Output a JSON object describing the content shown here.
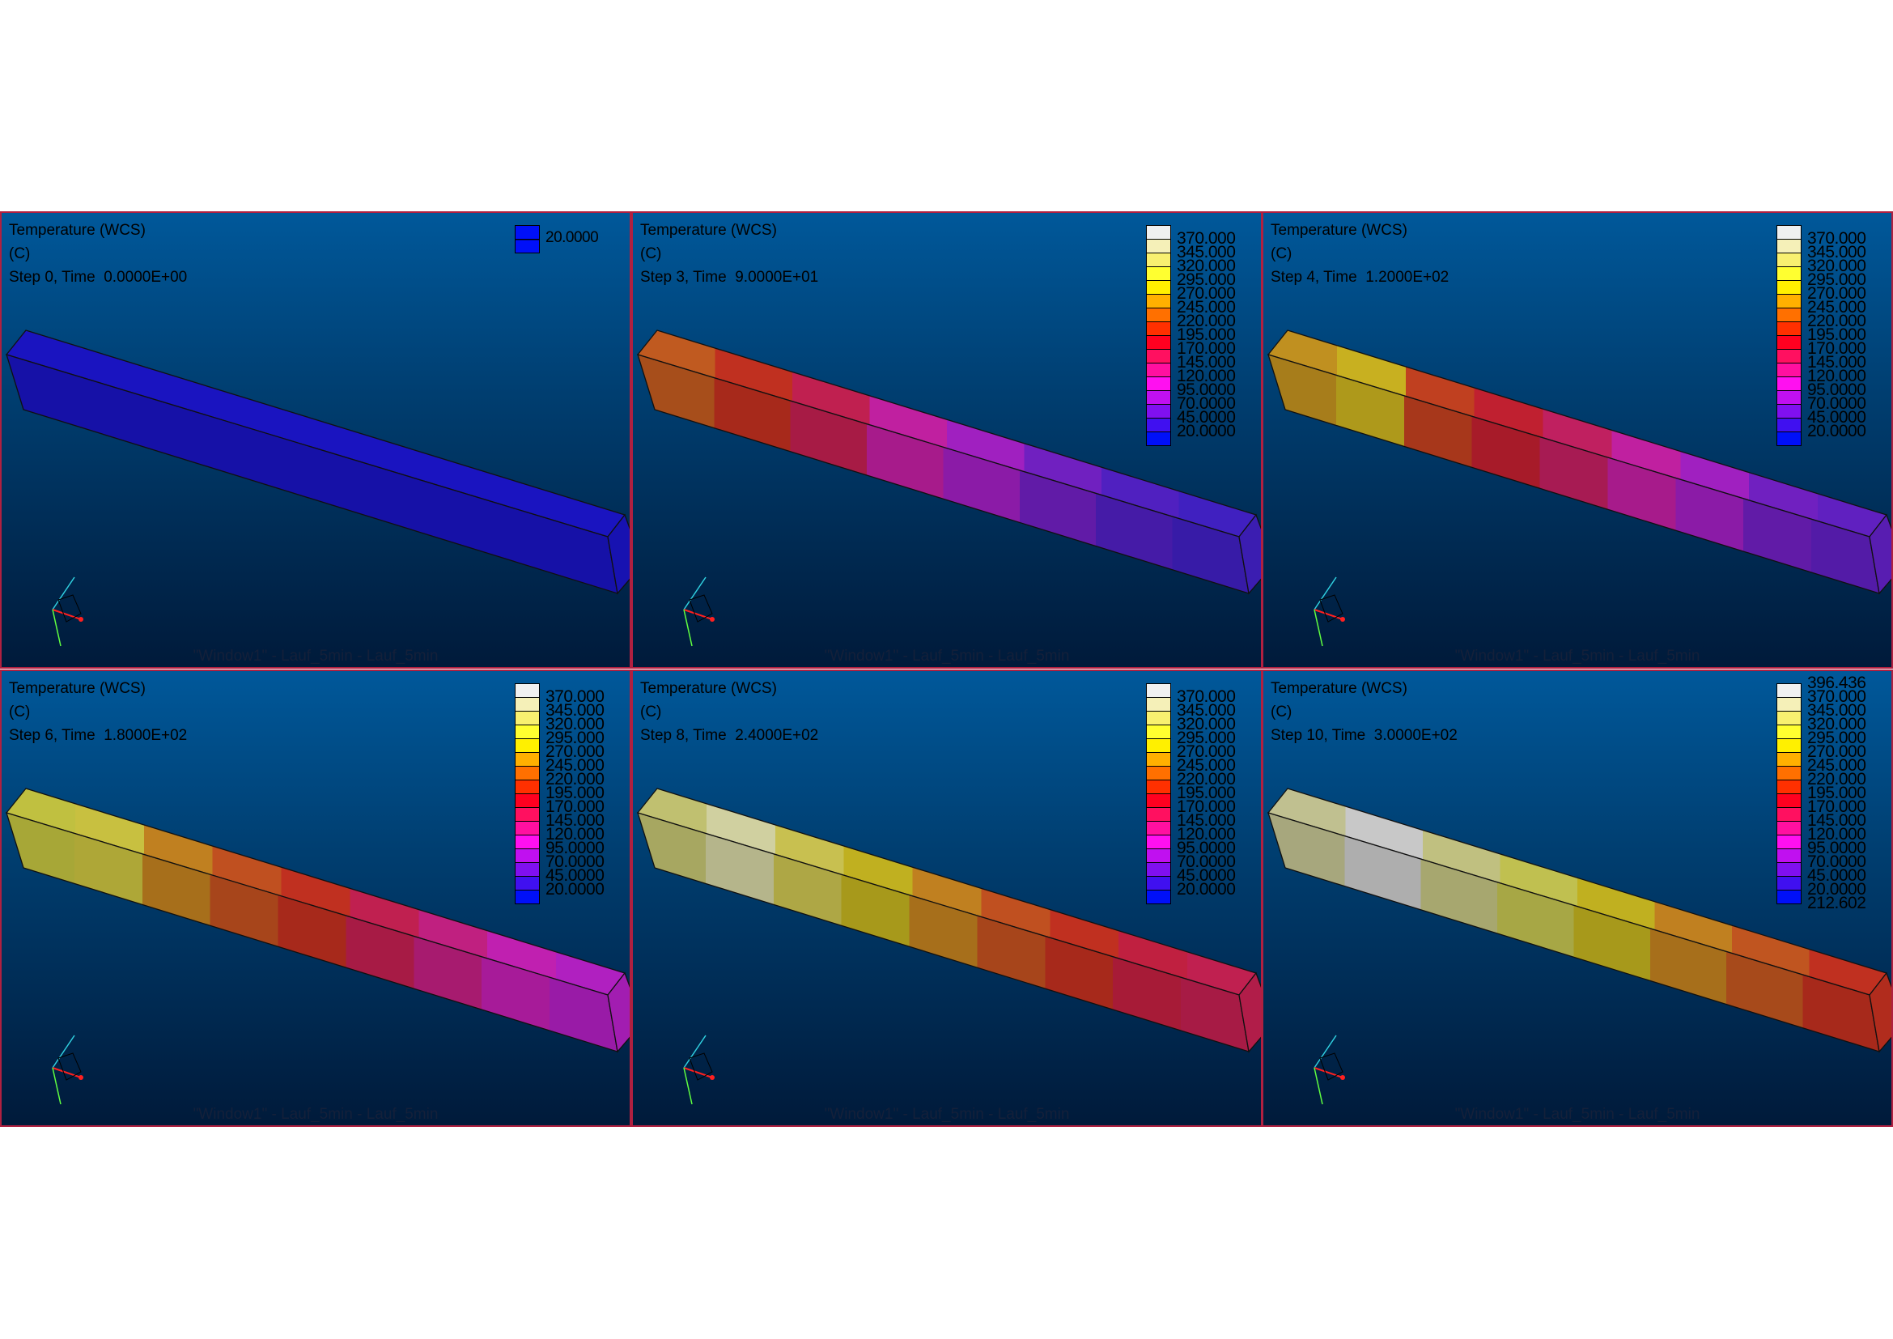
{
  "footer": "\"Window1\" - Lauf_5min - Lauf_5min",
  "legend_colors": [
    "#f0f0f0",
    "#f5f0b8",
    "#f8f070",
    "#ffff30",
    "#fff000",
    "#ffb000",
    "#ff7000",
    "#ff3000",
    "#ff0020",
    "#ff1060",
    "#ff10a0",
    "#ff10f0",
    "#c010f0",
    "#8010f0",
    "#4010f0",
    "#0010f8"
  ],
  "panels": [
    {
      "title": "Temperature (WCS)",
      "unit": "(C)",
      "step": "Step 0, Time  0.0000E+00",
      "legend_single": true,
      "legend_single_color": "#0010f8",
      "legend": [
        "20.0000"
      ],
      "bands": [
        "#1a14c0"
      ]
    },
    {
      "title": "Temperature (WCS)",
      "unit": "(C)",
      "step": "Step 3, Time  9.0000E+01",
      "legend": [
        "370.000",
        "345.000",
        "320.000",
        "295.000",
        "270.000",
        "245.000",
        "220.000",
        "195.000",
        "170.000",
        "145.000",
        "120.000",
        "95.0000",
        "70.0000",
        "45.0000",
        "20.0000"
      ],
      "bands": [
        "#c05a20",
        "#c03020",
        "#c02050",
        "#c020a0",
        "#a020c0",
        "#7020c0",
        "#5020c0",
        "#4020c0"
      ]
    },
    {
      "title": "Temperature (WCS)",
      "unit": "(C)",
      "step": "Step 4, Time  1.2000E+02",
      "legend": [
        "370.000",
        "345.000",
        "320.000",
        "295.000",
        "270.000",
        "245.000",
        "220.000",
        "195.000",
        "170.000",
        "145.000",
        "120.000",
        "95.0000",
        "70.0000",
        "45.0000",
        "20.0000"
      ],
      "bands": [
        "#c09020",
        "#c8b020",
        "#c04020",
        "#c02030",
        "#c02060",
        "#c020a0",
        "#a020c0",
        "#7020c0",
        "#6020c0"
      ]
    },
    {
      "title": "Temperature (WCS)",
      "unit": "(C)",
      "step": "Step 6, Time  1.8000E+02",
      "legend": [
        "370.000",
        "345.000",
        "320.000",
        "295.000",
        "270.000",
        "245.000",
        "220.000",
        "195.000",
        "170.000",
        "145.000",
        "120.000",
        "95.0000",
        "70.0000",
        "45.0000",
        "20.0000"
      ],
      "bands": [
        "#c0c040",
        "#c8c040",
        "#c08020",
        "#c05020",
        "#c03020",
        "#c02050",
        "#c02080",
        "#c020b0",
        "#b020c0"
      ]
    },
    {
      "title": "Temperature (WCS)",
      "unit": "(C)",
      "step": "Step 8, Time  2.4000E+02",
      "legend": [
        "370.000",
        "345.000",
        "320.000",
        "295.000",
        "270.000",
        "245.000",
        "220.000",
        "195.000",
        "170.000",
        "145.000",
        "120.000",
        "95.0000",
        "70.0000",
        "45.0000",
        "20.0000"
      ],
      "bands": [
        "#c0c070",
        "#d0d0a0",
        "#c8c050",
        "#c0b020",
        "#c08020",
        "#c05020",
        "#c03020",
        "#c02040",
        "#c02050"
      ]
    },
    {
      "title": "Temperature (WCS)",
      "unit": "(C)",
      "step": "Step 10, Time  3.0000E+02",
      "legend_outer": true,
      "legend": [
        "396.436",
        "370.000",
        "345.000",
        "320.000",
        "295.000",
        "270.000",
        "245.000",
        "220.000",
        "195.000",
        "170.000",
        "145.000",
        "120.000",
        "95.0000",
        "70.0000",
        "45.0000",
        "20.0000",
        "212.602"
      ],
      "bands": [
        "#c0c090",
        "#c8c8c8",
        "#c0c080",
        "#c0c050",
        "#c0b020",
        "#c08020",
        "#c05520",
        "#c03020"
      ]
    }
  ]
}
